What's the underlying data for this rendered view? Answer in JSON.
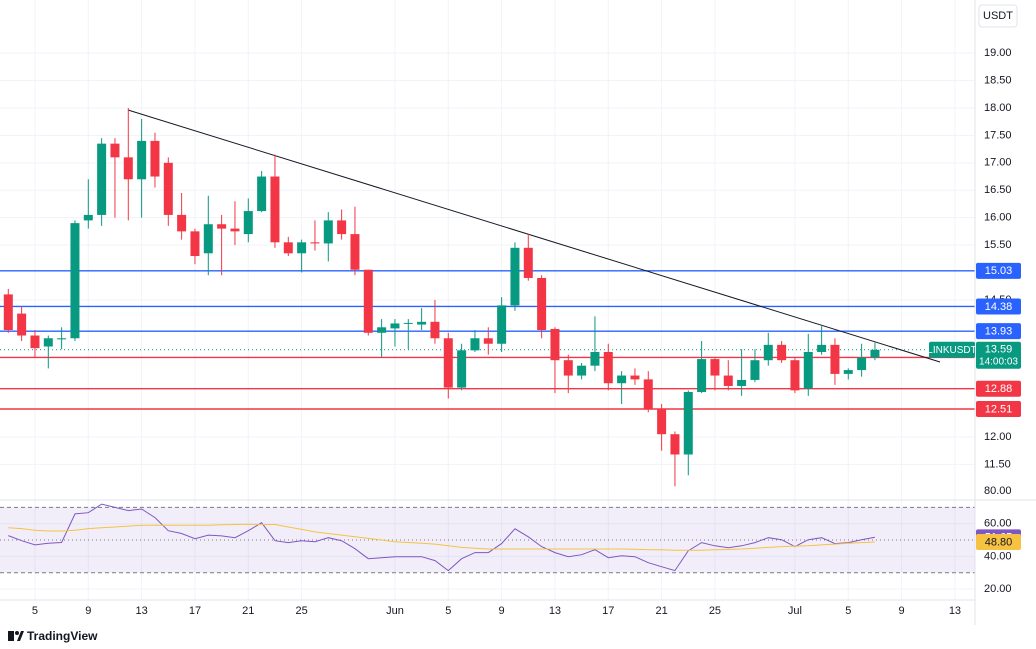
{
  "unit": "USDT",
  "symbol": "LINKUSDT",
  "countdown": "14:00:03",
  "brand": "TradingView",
  "chart_data": [
    {
      "type": "candlestick",
      "grid": true,
      "up_color": "#089981",
      "down_color": "#f23645",
      "categories": [
        null,
        null,
        "5",
        null,
        null,
        null,
        "9",
        null,
        null,
        null,
        "13",
        null,
        null,
        null,
        "17",
        null,
        null,
        null,
        "21",
        null,
        null,
        null,
        "25",
        null,
        null,
        null,
        null,
        null,
        null,
        "Jun",
        null,
        null,
        null,
        "5",
        null,
        null,
        null,
        "9",
        null,
        null,
        null,
        "13",
        null,
        null,
        null,
        "17",
        null,
        null,
        null,
        "21",
        null,
        null,
        null,
        "25",
        null,
        null,
        null,
        null,
        null,
        "Jul",
        null,
        null,
        null,
        "5",
        null,
        null,
        null,
        "9",
        null,
        null,
        null,
        "13",
        null
      ],
      "open": [
        14.6,
        14.25,
        13.85,
        13.65,
        13.78,
        13.8,
        15.95,
        16.05,
        17.35,
        17.1,
        16.7,
        17.4,
        17.0,
        16.05,
        15.75,
        15.35,
        15.88,
        15.8,
        15.7,
        16.12,
        16.75,
        15.55,
        15.35,
        15.55,
        15.53,
        15.95,
        15.7,
        15.05,
        13.9,
        13.98,
        14.07,
        14.05,
        14.1,
        13.8,
        12.9,
        13.58,
        13.8,
        13.7,
        14.4,
        15.45,
        14.9,
        13.97,
        13.4,
        13.12,
        13.3,
        13.55,
        12.98,
        13.12,
        13.05,
        12.5,
        12.05,
        11.68,
        12.82,
        13.42,
        13.12,
        12.93,
        13.04,
        13.4,
        13.68,
        13.4,
        12.88,
        13.55,
        13.68,
        13.15,
        13.22,
        13.45,
        null,
        null,
        null,
        null,
        null,
        null,
        null
      ],
      "high": [
        14.7,
        14.38,
        13.95,
        13.85,
        14.0,
        15.95,
        16.7,
        17.45,
        17.45,
        18.0,
        17.8,
        17.55,
        17.1,
        16.45,
        15.8,
        16.4,
        16.05,
        16.3,
        16.35,
        16.85,
        17.15,
        15.65,
        15.6,
        15.95,
        16.1,
        16.15,
        16.2,
        15.05,
        14.15,
        14.15,
        14.15,
        14.35,
        14.5,
        13.9,
        13.7,
        13.95,
        14.0,
        14.55,
        15.55,
        15.7,
        14.95,
        14.0,
        13.5,
        13.35,
        14.2,
        13.7,
        13.2,
        13.25,
        13.2,
        12.6,
        12.1,
        12.85,
        13.75,
        13.45,
        13.4,
        13.6,
        13.6,
        13.9,
        13.75,
        13.45,
        13.88,
        14.02,
        13.8,
        13.25,
        13.7,
        13.72,
        null,
        null,
        null,
        null,
        null,
        null,
        null
      ],
      "low": [
        13.9,
        13.75,
        13.45,
        13.25,
        13.6,
        13.75,
        15.8,
        15.85,
        16.0,
        15.95,
        16.0,
        16.55,
        15.85,
        15.6,
        15.15,
        14.95,
        14.95,
        15.5,
        15.55,
        16.1,
        15.45,
        15.3,
        15.0,
        15.4,
        15.2,
        15.6,
        14.95,
        13.85,
        13.45,
        13.65,
        13.6,
        13.95,
        13.7,
        12.7,
        12.85,
        13.55,
        13.5,
        13.55,
        14.3,
        14.85,
        13.8,
        12.8,
        12.8,
        13.05,
        13.2,
        12.85,
        12.6,
        12.95,
        12.45,
        11.75,
        11.1,
        11.3,
        12.8,
        12.85,
        12.85,
        12.75,
        13.0,
        13.3,
        13.35,
        12.8,
        12.75,
        13.5,
        12.95,
        13.05,
        13.1,
        13.4,
        null,
        null,
        null,
        null,
        null,
        null,
        null
      ],
      "close": [
        13.95,
        13.85,
        13.62,
        13.8,
        13.8,
        15.9,
        16.05,
        17.35,
        17.1,
        16.7,
        17.4,
        16.75,
        16.05,
        15.75,
        15.3,
        15.88,
        15.8,
        15.75,
        16.12,
        16.75,
        15.55,
        15.35,
        15.55,
        15.53,
        15.95,
        15.7,
        15.05,
        13.9,
        14.0,
        14.07,
        14.08,
        14.1,
        13.8,
        12.9,
        13.58,
        13.8,
        13.7,
        14.4,
        15.45,
        14.9,
        13.95,
        13.4,
        13.12,
        13.3,
        13.55,
        12.98,
        13.12,
        13.05,
        12.5,
        12.05,
        11.68,
        12.82,
        13.42,
        13.12,
        12.93,
        13.04,
        13.4,
        13.68,
        13.4,
        12.85,
        13.55,
        13.68,
        13.15,
        13.22,
        13.45,
        13.59,
        null,
        null,
        null,
        null,
        null,
        null,
        null
      ],
      "ylim": [
        10.85,
        19.97
      ],
      "yticks": [
        {
          "value": 11.5,
          "label": "11.50"
        },
        {
          "value": 12,
          "label": "12.00"
        },
        {
          "value": 14.5,
          "label": "14.50"
        },
        {
          "value": 15.5,
          "label": "15.50"
        },
        {
          "value": 16,
          "label": "16.00"
        },
        {
          "value": 16.5,
          "label": "16.50"
        },
        {
          "value": 17,
          "label": "17.00"
        },
        {
          "value": 17.5,
          "label": "17.50"
        },
        {
          "value": 18,
          "label": "18.00"
        },
        {
          "value": 18.5,
          "label": "18.50"
        },
        {
          "value": 19,
          "label": "19.00"
        }
      ],
      "levels": [
        {
          "value": 15.03,
          "color": "#2962ff"
        },
        {
          "value": 14.38,
          "color": "#2962ff"
        },
        {
          "value": 13.93,
          "color": "#2962ff"
        },
        {
          "value": 13.45,
          "color": "#f23645"
        },
        {
          "value": 12.88,
          "color": "#f23645"
        },
        {
          "value": 12.51,
          "color": "#f23645"
        }
      ]
    },
    {
      "type": "line",
      "grid": true,
      "band_color": "#7e57c2",
      "series": [
        {
          "color": "#7e57c2",
          "values": [
            52.7,
            49.6,
            47,
            48,
            48.5,
            66,
            66.7,
            72,
            70,
            68,
            69,
            63.7,
            55.7,
            54,
            50.8,
            53,
            52.5,
            51.4,
            55.7,
            60.6,
            49.6,
            48.4,
            49.6,
            49,
            51.4,
            49.6,
            44.7,
            38.6,
            39.2,
            39.8,
            39.8,
            39.8,
            37.4,
            31.3,
            38.6,
            42.3,
            42.3,
            47.8,
            56.9,
            52,
            46,
            42.3,
            39.8,
            41,
            44.1,
            39.2,
            40.4,
            39.8,
            36.1,
            33.7,
            31.3,
            43.5,
            48.4,
            46.5,
            45.3,
            46.5,
            48.4,
            51.4,
            50.2,
            46,
            50.2,
            51.4,
            47.8,
            48.4,
            50.2,
            51.65
          ]
        },
        {
          "color": "#f5c242",
          "values": [
            57.5,
            57,
            56,
            55.5,
            55.5,
            56,
            57,
            57.5,
            58,
            58.5,
            59,
            59,
            59,
            59,
            59,
            59,
            59.3,
            59.5,
            59.6,
            59.5,
            59.5,
            58,
            56.5,
            55,
            54,
            53,
            52,
            51,
            50,
            49,
            48.5,
            48,
            47.5,
            46.5,
            45.5,
            45,
            44.5,
            44.5,
            44.5,
            44.5,
            44.5,
            44.5,
            44.5,
            44.5,
            44.5,
            44.5,
            44.5,
            44.3,
            44,
            44,
            43.8,
            43.8,
            43.8,
            44,
            44.2,
            44.5,
            45,
            45.5,
            46,
            46.3,
            46.5,
            47,
            47.5,
            48,
            48.4,
            48.8
          ],
          "value_labels": [
            null,
            null,
            null,
            null,
            null,
            null,
            null,
            null,
            null,
            null,
            null,
            null,
            null,
            null,
            null,
            null,
            null,
            null,
            null,
            null,
            null,
            null,
            null,
            null,
            null,
            null,
            null,
            null,
            null,
            null,
            null,
            null,
            null,
            null,
            null,
            null,
            null,
            null,
            null,
            null,
            null,
            null,
            null,
            null,
            null,
            null,
            null,
            null,
            null,
            null,
            null,
            null,
            null,
            null,
            null,
            null,
            null,
            null,
            null,
            null,
            null,
            null,
            null,
            null,
            null,
            "48.80"
          ]
        }
      ],
      "ylim": [
        13.3,
        74.5
      ],
      "yticks": [
        {
          "value": 20,
          "label": "20.00"
        },
        {
          "value": 40,
          "label": "40.00"
        },
        {
          "value": 60,
          "label": "60.00"
        },
        {
          "value": 80,
          "label": "80.00"
        }
      ],
      "levels": [
        30,
        50,
        70
      ]
    }
  ]
}
